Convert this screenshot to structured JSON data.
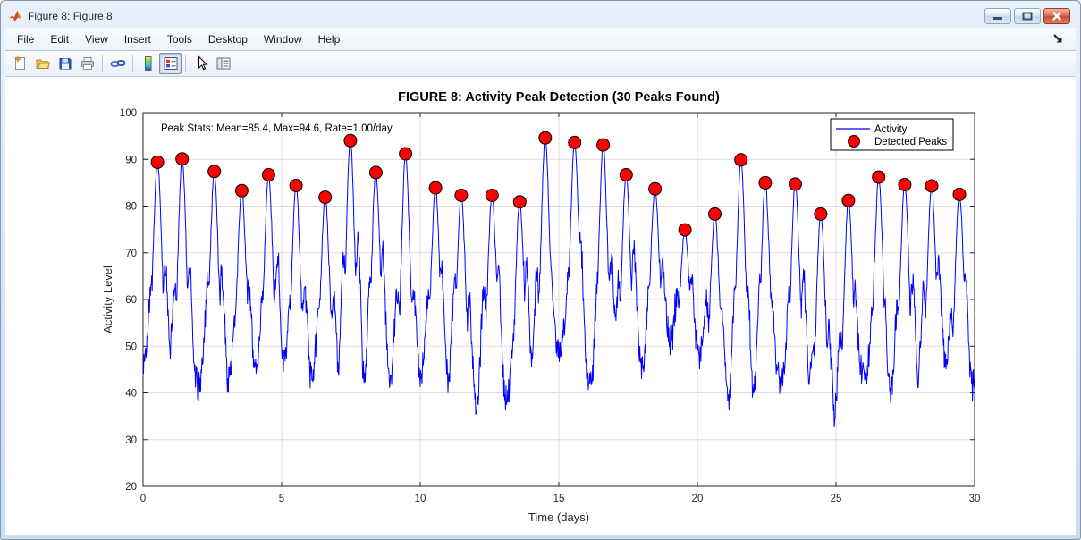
{
  "window": {
    "title": "Figure 8: Figure 8",
    "controls": [
      "minimize",
      "maximize",
      "close"
    ]
  },
  "menu": {
    "items": [
      "File",
      "Edit",
      "View",
      "Insert",
      "Tools",
      "Desktop",
      "Window",
      "Help"
    ]
  },
  "toolbar": {
    "groups": [
      [
        "new-figure",
        "open-file",
        "save-figure",
        "print-figure"
      ],
      [
        "link-plots"
      ],
      [
        "insert-colorbar",
        "insert-legend"
      ],
      [
        "edit-plot",
        "plot-browser"
      ]
    ],
    "pressed": "insert-legend"
  },
  "chart_data": {
    "type": "line",
    "title": "FIGURE 8: Activity Peak Detection (30 Peaks Found)",
    "xlabel": "Time (days)",
    "ylabel": "Activity Level",
    "xlim": [
      0,
      30
    ],
    "ylim": [
      20,
      100
    ],
    "xticks": [
      0,
      5,
      10,
      15,
      20,
      25,
      30
    ],
    "yticks": [
      20,
      30,
      40,
      50,
      60,
      70,
      80,
      90,
      100
    ],
    "grid": true,
    "annotation": "Peak Stats: Mean=85.4, Max=94.6, Rate=1.00/day",
    "legend": {
      "position": "northeast",
      "entries": [
        {
          "label": "Activity",
          "type": "line",
          "color": "#0000ff"
        },
        {
          "label": "Detected Peaks",
          "type": "marker",
          "color": "#ff0000",
          "edge": "#000000"
        }
      ]
    },
    "colors": {
      "line": "#0000ff",
      "peak_fill": "#ff0000",
      "peak_edge": "#000000",
      "grid": "#dcdcdc",
      "axis": "#262626",
      "text": "#262626"
    },
    "series": [
      {
        "name": "Activity",
        "type": "line",
        "color": "#0000ff",
        "generator": {
          "seed": 1337,
          "samples_per_day": 64,
          "baseline": 46,
          "baseline_wander": 5,
          "slow_amp": 2.2,
          "noise": 4.2,
          "spike_width": 0.135,
          "shoulder_width": 0.09,
          "valley_depth": 11,
          "min_value": 23.5
        }
      },
      {
        "name": "Detected Peaks",
        "type": "scatter",
        "color": "#ff0000",
        "edge": "#000000",
        "x": [
          0.52,
          1.41,
          2.57,
          3.56,
          4.53,
          5.52,
          6.57,
          7.48,
          8.4,
          9.47,
          10.55,
          11.48,
          12.59,
          13.59,
          14.51,
          15.57,
          16.6,
          17.43,
          18.47,
          19.55,
          20.63,
          21.57,
          22.45,
          23.53,
          24.45,
          25.45,
          26.54,
          27.48,
          28.45,
          29.45
        ],
        "y": [
          89.4,
          90.1,
          87.4,
          83.3,
          86.7,
          84.4,
          81.9,
          94.0,
          87.2,
          91.2,
          83.9,
          82.3,
          82.3,
          80.9,
          94.6,
          93.6,
          93.1,
          86.7,
          83.7,
          74.9,
          78.3,
          89.9,
          85.0,
          84.7,
          78.3,
          81.2,
          86.2,
          84.6,
          84.3,
          82.5
        ]
      }
    ],
    "peaks_found": 30,
    "stats": {
      "mean": 85.4,
      "max": 94.6,
      "rate_per_day": 1.0
    }
  }
}
